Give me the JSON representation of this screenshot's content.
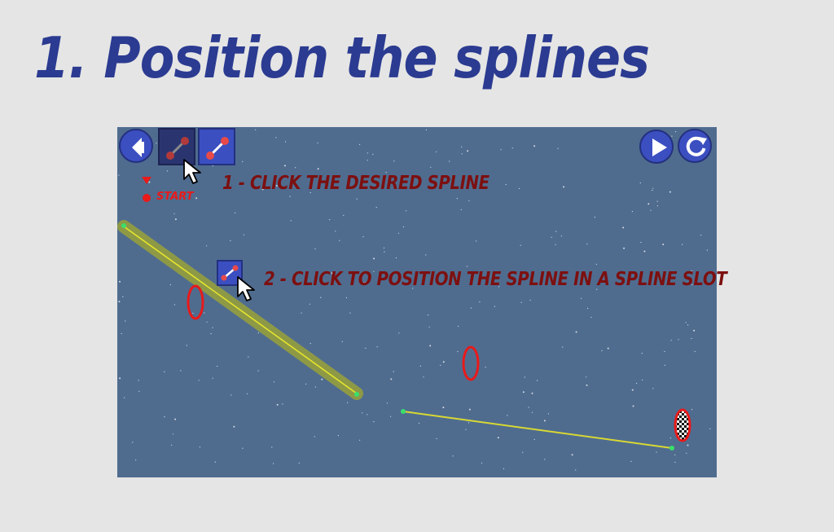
{
  "page": {
    "heading": "1. Position the splines"
  },
  "toolbar": {
    "back_icon": "back-arrow-icon",
    "spline_tool_1_icon": "spline-segment-icon",
    "spline_tool_2_icon": "spline-segment-icon",
    "play_icon": "play-icon",
    "restart_icon": "restart-icon"
  },
  "level": {
    "start_label": "START"
  },
  "instructions": {
    "step1": "1 - click the desired spline",
    "step2": "2 - click to position the spline in a spline slot"
  },
  "colors": {
    "heading": "#2b3b91",
    "stage_bg": "#4f6c8f",
    "button_fill": "#3b4fc1",
    "instruction_text": "#7c1010",
    "start_marker": "#e81a1a",
    "spline_line": "#e8e82a",
    "ring": "#e81a1a"
  }
}
